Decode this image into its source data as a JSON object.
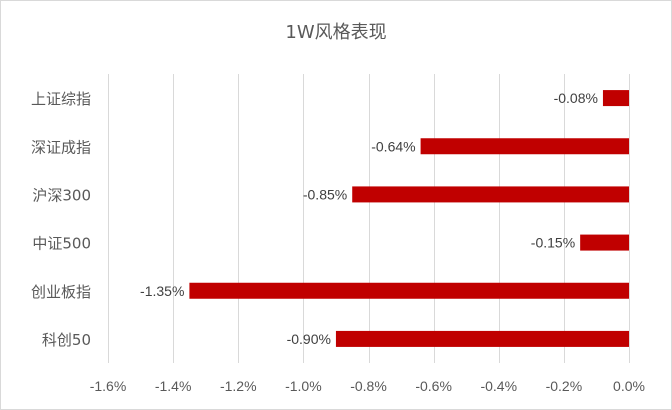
{
  "chart_data": {
    "type": "bar",
    "orientation": "horizontal",
    "title": "1W风格表现",
    "categories": [
      "上证综指",
      "深证成指",
      "沪深300",
      "中证500",
      "创业板指",
      "科创50"
    ],
    "values": [
      -0.0008,
      -0.0064,
      -0.0085,
      -0.0015,
      -0.0135,
      -0.009
    ],
    "data_labels": [
      "-0.08%",
      "-0.64%",
      "-0.85%",
      "-0.15%",
      "-1.35%",
      "-0.90%"
    ],
    "xlim": [
      -0.016,
      0.0
    ],
    "xticks": [
      -0.016,
      -0.014,
      -0.012,
      -0.01,
      -0.008,
      -0.006,
      -0.004,
      -0.002,
      0.0
    ],
    "xtick_labels": [
      "-1.6%",
      "-1.4%",
      "-1.2%",
      "-1.0%",
      "-0.8%",
      "-0.6%",
      "-0.4%",
      "-0.2%",
      "0.0%"
    ],
    "xlabel": "",
    "ylabel": "",
    "grid": true,
    "legend": "none",
    "bar_color": "#c00000"
  }
}
